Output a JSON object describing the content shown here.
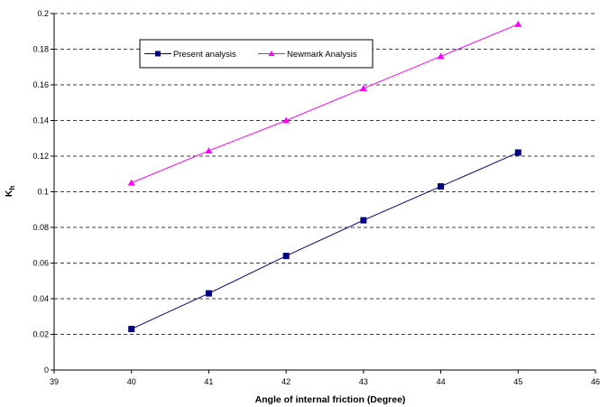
{
  "chart_data": {
    "type": "line",
    "xlabel": "Angle of internal friction (Degree)",
    "ylabel": "K",
    "ylabel_sub": "h",
    "xlim": [
      39,
      46
    ],
    "ylim": [
      0,
      0.2
    ],
    "xticks": [
      39,
      40,
      41,
      42,
      43,
      44,
      45,
      46
    ],
    "xtick_labels": [
      "39",
      "40",
      "41",
      "42",
      "43",
      "44",
      "45",
      "46"
    ],
    "yticks": [
      0,
      0.02,
      0.04,
      0.06,
      0.08,
      0.1,
      0.12,
      0.14,
      0.16,
      0.18,
      0.2
    ],
    "ytick_labels": [
      "0",
      "0.02",
      "0.04",
      "0.06",
      "0.08",
      "0.1",
      "0.12",
      "0.14",
      "0.16",
      "0.18",
      "0.2"
    ],
    "grid": "horizontal dashed",
    "legend_position": "top-left inside plot",
    "x": [
      40,
      41,
      42,
      43,
      44,
      45
    ],
    "series": [
      {
        "name": "Present analysis",
        "values": [
          0.023,
          0.043,
          0.064,
          0.084,
          0.103,
          0.122
        ],
        "color": "#000080",
        "marker": "square"
      },
      {
        "name": "Newmark Analysis",
        "values": [
          0.105,
          0.123,
          0.14,
          0.158,
          0.176,
          0.194
        ],
        "color": "#ff00ff",
        "marker": "triangle"
      }
    ]
  }
}
